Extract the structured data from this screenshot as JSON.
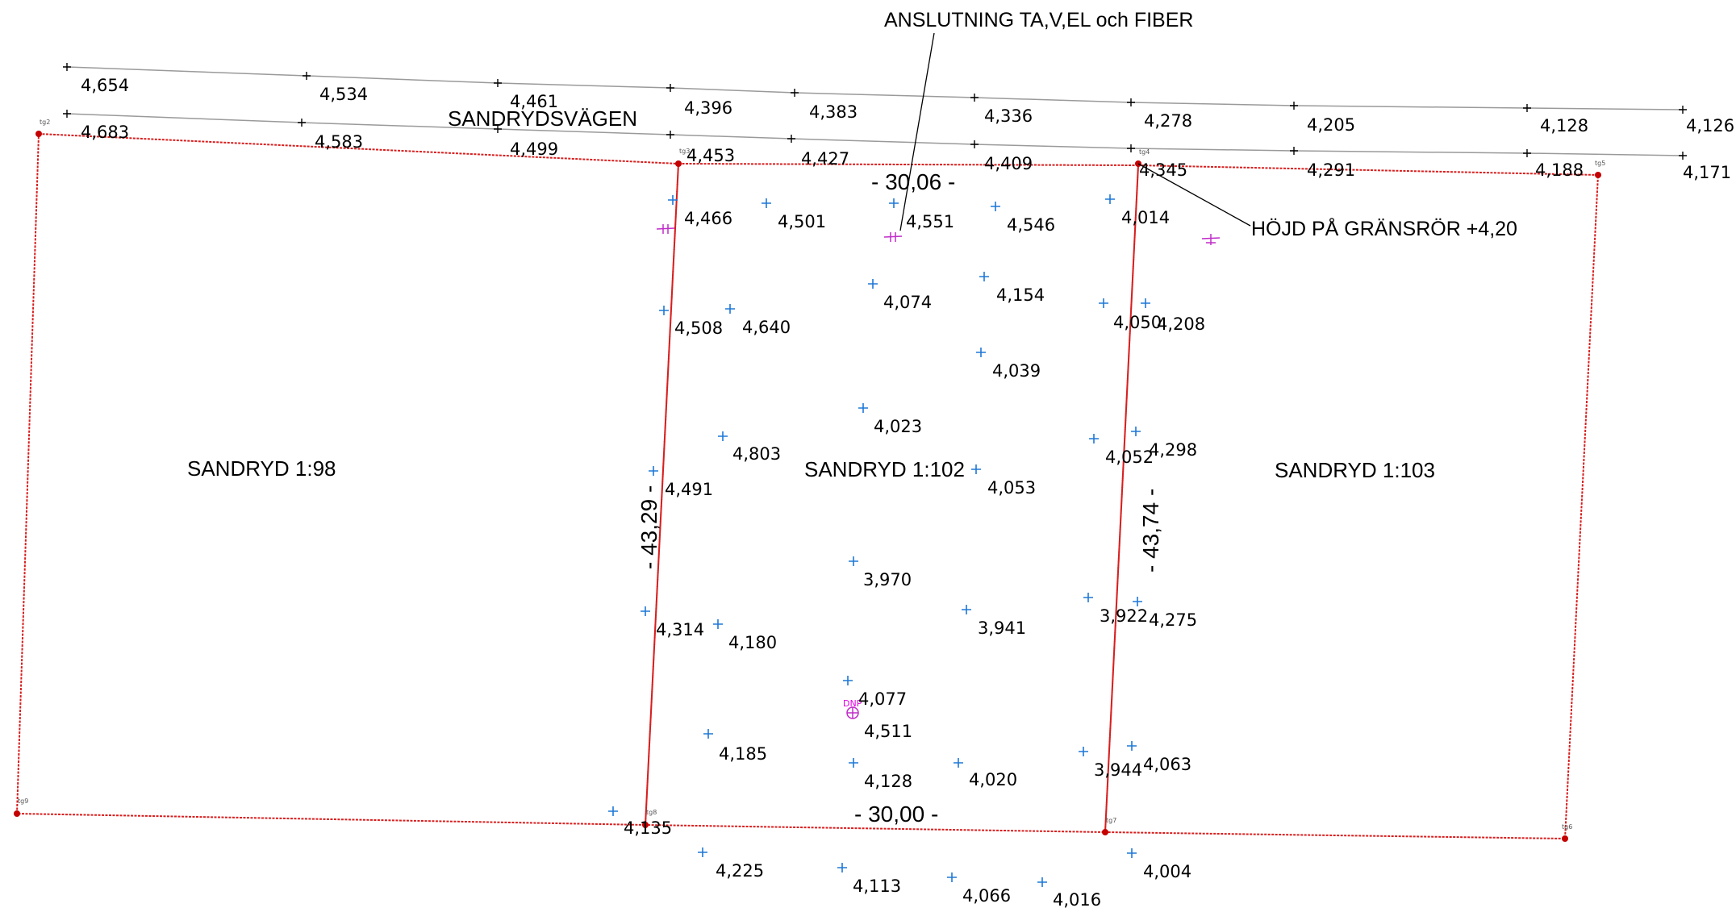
{
  "colors": {
    "boundary": "#d81e1e",
    "road_line": "#9a9a9a",
    "survey_point": "#1e78d7",
    "utility_marker": "#c02cc8",
    "label_text": "#000000"
  },
  "road": {
    "name": "SANDRYDSVÄGEN"
  },
  "parcels": {
    "left": "SANDRYD 1:98",
    "center": "SANDRYD 1:102",
    "right": "SANDRYD 1:103"
  },
  "dimensions": {
    "top": "- 30,06 -",
    "bottom": "- 30,00 -",
    "left": "- 43,29 -",
    "right": "- 43,74 -"
  },
  "annotations": {
    "connection": "ANSLUTNING TA,V,EL och FIBER",
    "pipe_height": "HÖJD PÅ GRÄNSRÖR +4,20"
  },
  "boundary_points": {
    "tg2": "tg2",
    "tg3": "tg3",
    "tg4": "tg4",
    "tg5": "tg5",
    "tg6": "tg6",
    "tg7": "tg7",
    "tg8": "tg8",
    "tg9": "tg9"
  },
  "utility_marker": {
    "label": "DNP"
  },
  "road_upper_elevations": [
    "4,654",
    "4,534",
    "4,461",
    "4,396",
    "4,383",
    "4,336",
    "4,278",
    "4,205",
    "4,128",
    "4,126"
  ],
  "road_lower_elevations": [
    "4,683",
    "4,583",
    "4,499",
    "4,453",
    "4,427",
    "4,409",
    "4,345",
    "4,291",
    "4,188",
    "4,171"
  ],
  "site_elevations": [
    "4,466",
    "4,501",
    "4,551",
    "4,546",
    "4,014",
    "4,074",
    "4,154",
    "4,050",
    "4,208",
    "4,508",
    "4,640",
    "4,039",
    "4,023",
    "4,803",
    "4,052",
    "4,298",
    "4,491",
    "4,053",
    "3,970",
    "4,314",
    "4,180",
    "3,941",
    "3,922",
    "4,275",
    "4,077",
    "4,511",
    "4,185",
    "4,128",
    "4,020",
    "3,944",
    "4,063",
    "4,135",
    "4,225",
    "4,113",
    "4,066",
    "4,016",
    "4,004"
  ]
}
